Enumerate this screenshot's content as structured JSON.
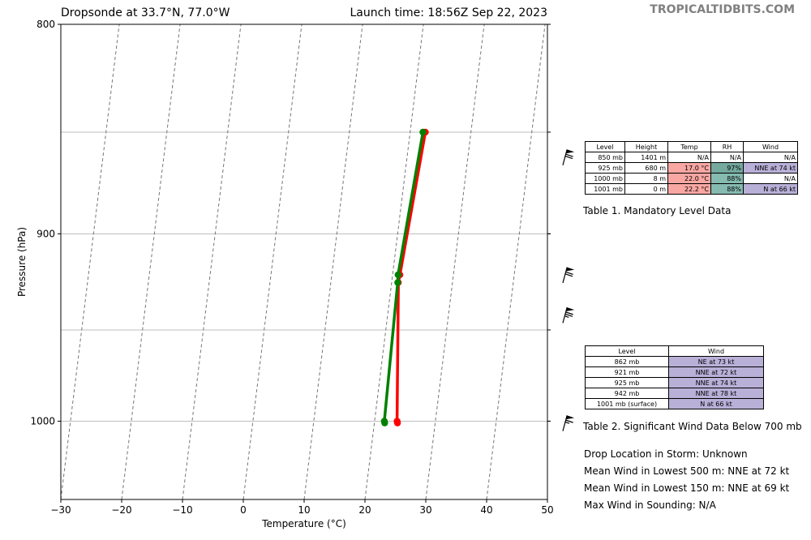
{
  "header": {
    "title_left": "Dropsonde at 33.7°N, 77.0°W",
    "title_right": "Launch time: 18:56Z Sep 22, 2023",
    "brand": "TROPICALTIDBITS.COM"
  },
  "chart_data": {
    "type": "line",
    "xlabel": "Temperature (°C)",
    "ylabel": "Pressure (hPa)",
    "xlim": [
      -30,
      50
    ],
    "ylim": [
      1045,
      800
    ],
    "x_ticks": [
      "−30",
      "−20",
      "−10",
      "0",
      "10",
      "20",
      "30",
      "40",
      "50"
    ],
    "y_ticks": [
      "800",
      "900",
      "1000"
    ],
    "y_log_scale": true,
    "skew_isotherms": true,
    "isobar_lines_hpa": [
      850,
      900,
      950,
      1000
    ],
    "series": [
      {
        "color": "#ff0000",
        "points": [
          [
            22.5,
            850
          ],
          [
            21.2,
            921
          ],
          [
            21.1,
            925
          ],
          [
            23.7,
            1000
          ],
          [
            23.8,
            1001
          ]
        ]
      },
      {
        "color": "#008000",
        "points": [
          [
            22.1,
            850
          ],
          [
            20.9,
            921
          ],
          [
            21.0,
            925
          ],
          [
            21.6,
            1000
          ],
          [
            21.7,
            1001
          ]
        ]
      }
    ],
    "wind_barbs": [
      {
        "pressure": 862,
        "knots": 73
      },
      {
        "pressure": 921,
        "knots": 72
      },
      {
        "pressure": 942,
        "knots": 78
      },
      {
        "pressure": 1001,
        "knots": 66
      }
    ]
  },
  "table1": {
    "headers": [
      "Level",
      "Height",
      "Temp",
      "RH",
      "Wind"
    ],
    "rows": [
      [
        "850 mb",
        "1401 m",
        "N/A",
        "N/A",
        "N/A"
      ],
      [
        "925 mb",
        "680 m",
        "17.0 °C",
        "97%",
        "NNE at 74 kt"
      ],
      [
        "1000 mb",
        "8 m",
        "22.0 °C",
        "88%",
        "N/A"
      ],
      [
        "1001 mb",
        "0 m",
        "22.2 °C",
        "88%",
        "N at 66 kt"
      ]
    ],
    "cell_colors": [
      [
        "#ffffff",
        "#ffffff",
        "#ffffff",
        "#ffffff",
        "#ffffff"
      ],
      [
        "#ffffff",
        "#ffffff",
        "#f8a7a3",
        "#74a99e",
        "#b9b0d8"
      ],
      [
        "#ffffff",
        "#ffffff",
        "#f8a7a3",
        "#85bbb1",
        "#ffffff"
      ],
      [
        "#ffffff",
        "#ffffff",
        "#f8a7a3",
        "#85bbb1",
        "#b9b0d8"
      ]
    ],
    "caption": "Table 1. Mandatory Level Data"
  },
  "table2": {
    "headers": [
      "Level",
      "Wind"
    ],
    "rows": [
      [
        "862 mb",
        "NE at 73 kt"
      ],
      [
        "921 mb",
        "NNE at 72 kt"
      ],
      [
        "925 mb",
        "NNE at 74 kt"
      ],
      [
        "942 mb",
        "NNE at 78 kt"
      ],
      [
        "1001 mb (surface)",
        "N at 66 kt"
      ]
    ],
    "wind_color": "#b9b0d8",
    "caption": "Table 2. Significant Wind Data Below 700 mb"
  },
  "notes": [
    "Drop Location in Storm: Unknown",
    "Mean Wind in Lowest 500 m:  NNE at 72 kt",
    "Mean Wind in Lowest 150 m:  NNE at 69 kt",
    "Max Wind in Sounding:  N/A"
  ]
}
